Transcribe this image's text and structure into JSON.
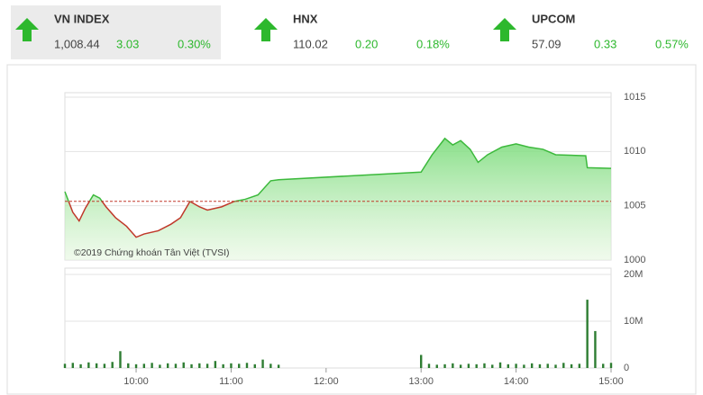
{
  "tiles": [
    {
      "name": "VN INDEX",
      "value": "1,008.44",
      "change": "3.03",
      "percent": "0.30%"
    },
    {
      "name": "HNX",
      "value": "110.02",
      "change": "0.20",
      "percent": "0.18%"
    },
    {
      "name": "UPCOM",
      "value": "57.09",
      "change": "0.33",
      "percent": "0.57%"
    }
  ],
  "watermark": "©2019 Chứng khoán Tân Việt (TVSI)",
  "chart_data": [
    {
      "type": "area",
      "x": [
        "09:15",
        "09:20",
        "09:24",
        "09:28",
        "09:33",
        "09:37",
        "09:41",
        "09:47",
        "09:54",
        "10:00",
        "10:05",
        "10:14",
        "10:22",
        "10:28",
        "10:34",
        "10:40",
        "10:45",
        "10:54",
        "11:02",
        "11:09",
        "11:17",
        "11:25",
        "11:30",
        "13:00",
        "13:07",
        "13:15",
        "13:20",
        "13:25",
        "13:31",
        "13:36",
        "13:42",
        "13:51",
        "14:00",
        "14:08",
        "14:17",
        "14:25",
        "14:44",
        "14:45",
        "15:00"
      ],
      "values": [
        1006.3,
        1004.4,
        1003.6,
        1004.8,
        1006.0,
        1005.7,
        1004.9,
        1003.9,
        1003.1,
        1002.1,
        1002.4,
        1002.7,
        1003.3,
        1003.9,
        1005.4,
        1004.9,
        1004.6,
        1004.9,
        1005.4,
        1005.6,
        1006.0,
        1007.3,
        1007.4,
        1008.1,
        1009.7,
        1011.2,
        1010.6,
        1011.0,
        1010.2,
        1009.0,
        1009.7,
        1010.4,
        1010.7,
        1010.4,
        1010.2,
        1009.7,
        1009.6,
        1008.5,
        1008.44
      ],
      "reference": 1005.41,
      "color": "#3cb93c",
      "below_color": "#c0392b",
      "xlim": [
        "09:15",
        "15:00"
      ],
      "ylim": [
        1000,
        1015
      ],
      "yticks": [
        1000,
        1005,
        1010,
        1015
      ],
      "grid": true
    },
    {
      "type": "bar",
      "x": [
        "09:15",
        "09:20",
        "09:25",
        "09:30",
        "09:35",
        "09:40",
        "09:45",
        "09:50",
        "09:55",
        "10:00",
        "10:05",
        "10:10",
        "10:15",
        "10:20",
        "10:25",
        "10:30",
        "10:35",
        "10:40",
        "10:45",
        "10:50",
        "10:55",
        "11:00",
        "11:05",
        "11:10",
        "11:15",
        "11:20",
        "11:25",
        "11:30",
        "13:00",
        "13:05",
        "13:10",
        "13:15",
        "13:20",
        "13:25",
        "13:30",
        "13:35",
        "13:40",
        "13:45",
        "13:50",
        "13:55",
        "14:00",
        "14:05",
        "14:10",
        "14:15",
        "14:20",
        "14:25",
        "14:30",
        "14:35",
        "14:40",
        "14:45",
        "14:50",
        "14:55",
        "15:00"
      ],
      "values": [
        900000,
        1100000,
        800000,
        1200000,
        1000000,
        900000,
        1300000,
        3600000,
        1000000,
        800000,
        900000,
        1100000,
        700000,
        1000000,
        900000,
        1200000,
        800000,
        1000000,
        900000,
        1500000,
        800000,
        1000000,
        900000,
        1100000,
        800000,
        1800000,
        900000,
        700000,
        2800000,
        900000,
        700000,
        800000,
        1000000,
        700000,
        900000,
        800000,
        1000000,
        700000,
        1200000,
        800000,
        900000,
        700000,
        1000000,
        800000,
        900000,
        700000,
        1100000,
        800000,
        900000,
        14600000,
        7900000,
        900000,
        1100000
      ],
      "color": "#2e7d32",
      "xlim": [
        "09:15",
        "15:00"
      ],
      "ylim": [
        0,
        20000000
      ],
      "yticks": [
        0,
        {
          "value": 10000000,
          "label": "10M"
        },
        {
          "value": 20000000,
          "label": "20M"
        }
      ],
      "xticks": [
        "10:00",
        "11:00",
        "12:00",
        "13:00",
        "14:00",
        "15:00"
      ],
      "grid": true
    }
  ]
}
